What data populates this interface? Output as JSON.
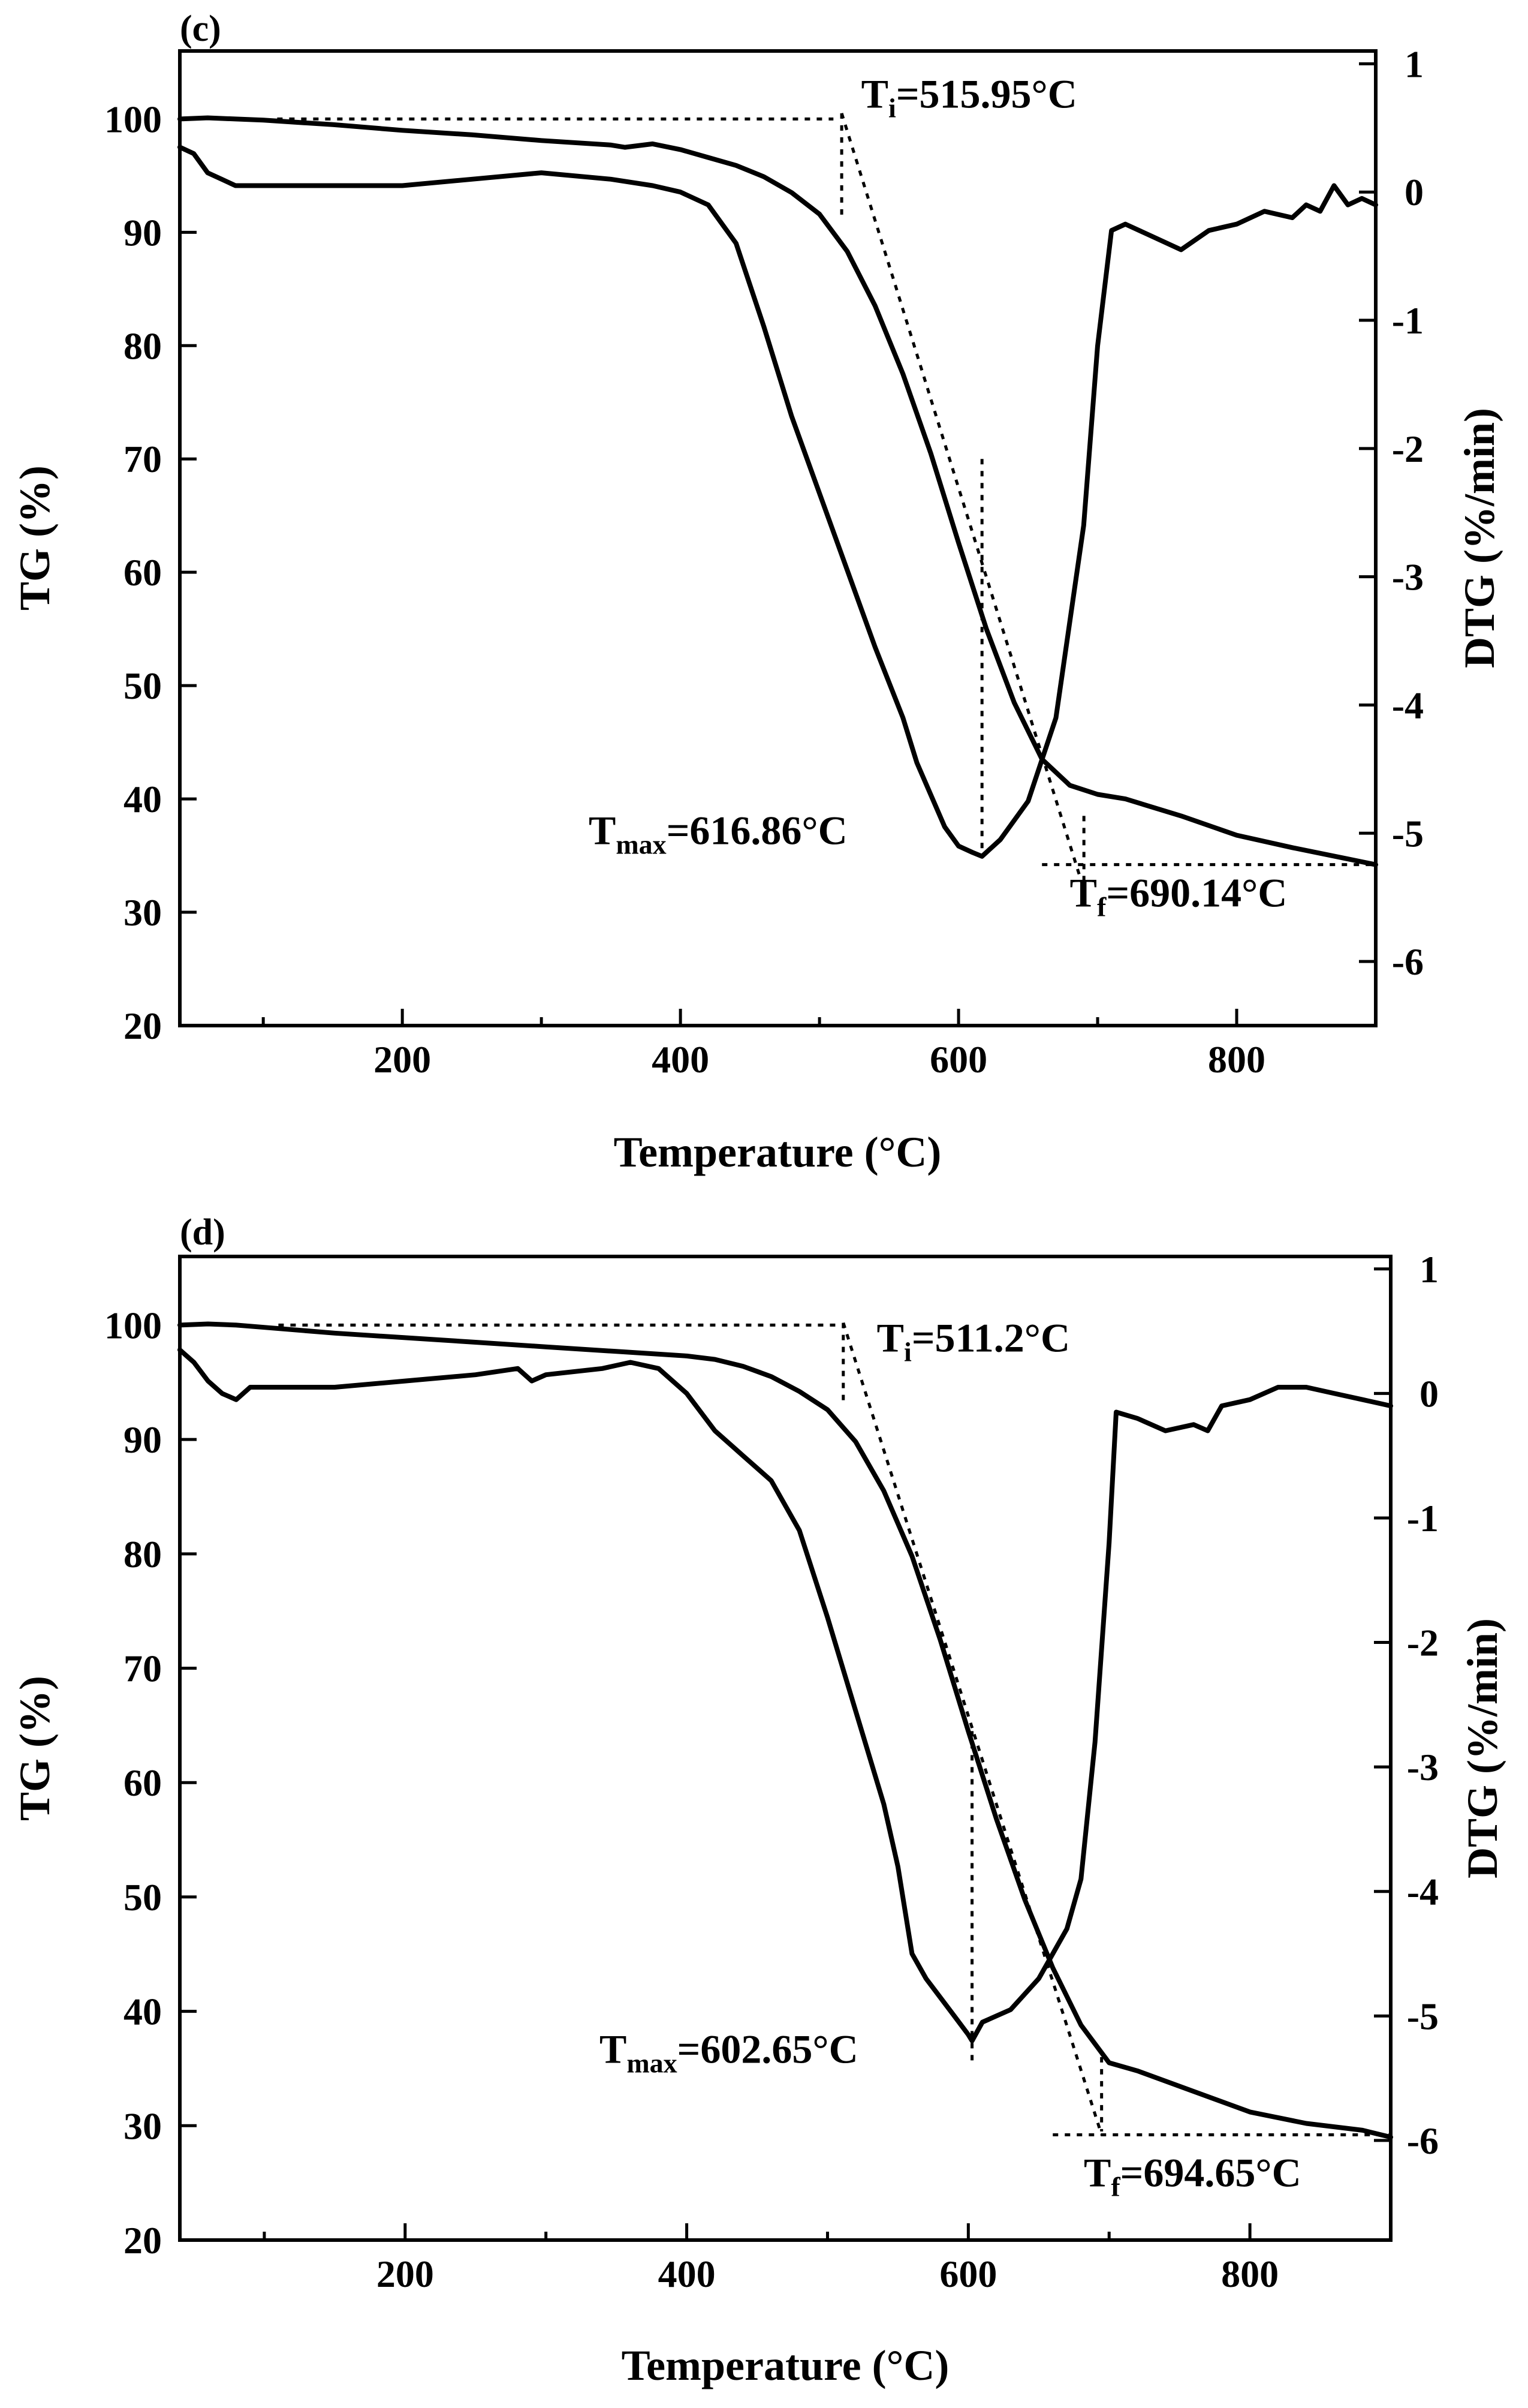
{
  "chart_data": [
    {
      "type": "line",
      "panel_label": "(c)",
      "xlabel": "Temperature (°C)",
      "ylabel_left": "TG (%)",
      "ylabel_right": "DTG (%/min)",
      "xlim": [
        40,
        900
      ],
      "ylim_left": [
        20,
        106
      ],
      "ylim_right": [
        -6.5,
        1.1
      ],
      "xticks": [
        200,
        400,
        600,
        800
      ],
      "xtick_labels": [
        "200",
        "400",
        "600",
        "800"
      ],
      "yticks_left": [
        20,
        30,
        40,
        50,
        60,
        70,
        80,
        90,
        100
      ],
      "ytick_labels_left": [
        "20",
        "30",
        "40",
        "50",
        "60",
        "70",
        "80",
        "90",
        "100"
      ],
      "yticks_right": [
        1,
        0,
        -1,
        -2,
        -3,
        -4,
        -5,
        -6
      ],
      "ytick_labels_right": [
        "1",
        "0",
        "-1",
        "-2",
        "-3",
        "-4",
        "-5",
        "-6"
      ],
      "series": [
        {
          "name": "TG",
          "axis": "left",
          "x": [
            40,
            60,
            80,
            100,
            150,
            200,
            250,
            300,
            350,
            360,
            380,
            400,
            420,
            440,
            460,
            480,
            500,
            520,
            540,
            560,
            580,
            600,
            620,
            640,
            660,
            680,
            700,
            720,
            760,
            800,
            840,
            880,
            900
          ],
          "y": [
            100,
            100.1,
            100,
            99.9,
            99.5,
            99,
            98.6,
            98.1,
            97.7,
            97.5,
            97.8,
            97.3,
            96.6,
            95.9,
            94.9,
            93.5,
            91.6,
            88.3,
            83.5,
            77.5,
            70.5,
            62.6,
            55,
            48.5,
            43.5,
            41.2,
            40.4,
            40,
            38.5,
            36.8,
            35.7,
            34.7,
            34.2
          ]
        },
        {
          "name": "DTG",
          "axis": "right",
          "x": [
            40,
            50,
            60,
            70,
            80,
            100,
            150,
            200,
            250,
            300,
            350,
            380,
            400,
            420,
            440,
            460,
            480,
            500,
            520,
            540,
            560,
            570,
            580,
            590,
            600,
            610,
            616.86,
            630,
            650,
            670,
            690,
            700,
            710,
            720,
            740,
            760,
            780,
            800,
            820,
            840,
            850,
            860,
            870,
            880,
            890,
            900
          ],
          "y": [
            0.35,
            0.3,
            0.15,
            0.1,
            0.05,
            0.05,
            0.05,
            0.05,
            0.1,
            0.15,
            0.1,
            0.05,
            0,
            -0.1,
            -0.4,
            -1.05,
            -1.75,
            -2.35,
            -2.95,
            -3.55,
            -4.1,
            -4.45,
            -4.7,
            -4.95,
            -5.1,
            -5.15,
            -5.18,
            -5.05,
            -4.75,
            -4.1,
            -2.6,
            -1.2,
            -0.3,
            -0.25,
            -0.35,
            -0.45,
            -0.3,
            -0.25,
            -0.15,
            -0.2,
            -0.1,
            -0.15,
            0.05,
            -0.1,
            -0.05,
            -0.1
          ]
        }
      ],
      "construction_lines": [
        {
          "axis": "left",
          "x": [
            110,
            510
          ],
          "y": [
            100,
            100
          ]
        },
        {
          "axis": "left",
          "x": [
            515.95,
            690.14
          ],
          "y": [
            100.5,
            32.0
          ]
        },
        {
          "axis": "left",
          "x": [
            515.95,
            515.95
          ],
          "y": [
            100.5,
            91.5
          ]
        },
        {
          "axis": "left",
          "x": [
            660,
            900
          ],
          "y": [
            34.2,
            34.2
          ]
        },
        {
          "axis": "left",
          "x": [
            690.14,
            690.14
          ],
          "y": [
            38.5,
            32.5
          ]
        },
        {
          "axis": "left",
          "x": [
            616.86,
            616.86
          ],
          "y": [
            70,
            35.5
          ]
        }
      ],
      "annotations": [
        {
          "label": "T",
          "sub": "i",
          "value": "=515.95°C",
          "anchor_x": 530,
          "anchor_y": 101,
          "axis": "left"
        },
        {
          "label": "T",
          "sub": "max",
          "value": "=616.86°C",
          "anchor_x": 334,
          "anchor_y": 36,
          "axis": "left"
        },
        {
          "label": "T",
          "sub": "f",
          "value": "=690.14°C",
          "anchor_x": 680,
          "anchor_y": 30.5,
          "axis": "left"
        }
      ]
    },
    {
      "type": "line",
      "panel_label": "(d)",
      "xlabel": "Temperature (°C)",
      "ylabel_left": "TG (%)",
      "ylabel_right": "DTG (%/min)",
      "xlim": [
        40,
        900
      ],
      "ylim_left": [
        20,
        106
      ],
      "ylim_right": [
        -6.8,
        1.1
      ],
      "xticks": [
        200,
        400,
        600,
        800
      ],
      "xtick_labels": [
        "200",
        "400",
        "600",
        "800"
      ],
      "yticks_left": [
        20,
        30,
        40,
        50,
        60,
        70,
        80,
        90,
        100
      ],
      "ytick_labels_left": [
        "20",
        "30",
        "40",
        "50",
        "60",
        "70",
        "80",
        "90",
        "100"
      ],
      "yticks_right": [
        1,
        0,
        -1,
        -2,
        -3,
        -4,
        -5,
        -6
      ],
      "ytick_labels_right": [
        "1",
        "0",
        "-1",
        "-2",
        "-3",
        "-4",
        "-5",
        "-6"
      ],
      "series": [
        {
          "name": "TG",
          "axis": "left",
          "x": [
            40,
            60,
            80,
            100,
            150,
            200,
            250,
            300,
            350,
            400,
            420,
            440,
            460,
            480,
            500,
            520,
            540,
            560,
            580,
            600,
            620,
            640,
            660,
            680,
            700,
            720,
            760,
            800,
            840,
            880,
            900
          ],
          "y": [
            100,
            100.1,
            100,
            99.8,
            99.3,
            98.9,
            98.5,
            98.1,
            97.7,
            97.3,
            97,
            96.4,
            95.5,
            94.2,
            92.6,
            89.8,
            85.5,
            79.8,
            72.5,
            64.5,
            56.8,
            49.8,
            43.8,
            38.8,
            35.5,
            34.8,
            33,
            31.2,
            30.2,
            29.6,
            29
          ]
        },
        {
          "name": "DTG",
          "axis": "right",
          "x": [
            40,
            50,
            60,
            70,
            80,
            90,
            100,
            150,
            200,
            250,
            280,
            290,
            300,
            340,
            360,
            380,
            400,
            420,
            440,
            460,
            480,
            500,
            520,
            540,
            550,
            560,
            570,
            580,
            590,
            600,
            602.65,
            610,
            630,
            650,
            670,
            680,
            690,
            700,
            705,
            720,
            740,
            760,
            770,
            780,
            800,
            820,
            840,
            860,
            880,
            900
          ],
          "y": [
            0.35,
            0.25,
            0.1,
            0,
            -0.05,
            0.05,
            0.05,
            0.05,
            0.1,
            0.15,
            0.2,
            0.1,
            0.15,
            0.2,
            0.25,
            0.2,
            0,
            -0.3,
            -0.5,
            -0.7,
            -1.1,
            -1.8,
            -2.55,
            -3.3,
            -3.8,
            -4.5,
            -4.7,
            -4.85,
            -5,
            -5.15,
            -5.2,
            -5.05,
            -4.95,
            -4.7,
            -4.3,
            -3.9,
            -2.8,
            -1.2,
            -0.15,
            -0.2,
            -0.3,
            -0.25,
            -0.3,
            -0.1,
            -0.05,
            0.05,
            0.05,
            0,
            -0.05,
            -0.1
          ]
        }
      ],
      "construction_lines": [
        {
          "axis": "left",
          "x": [
            110,
            510
          ],
          "y": [
            100,
            100
          ]
        },
        {
          "axis": "left",
          "x": [
            511.2,
            694.65
          ],
          "y": [
            100.2,
            29.2
          ]
        },
        {
          "axis": "left",
          "x": [
            511.2,
            511.2
          ],
          "y": [
            100.2,
            93
          ]
        },
        {
          "axis": "left",
          "x": [
            660,
            900
          ],
          "y": [
            29.2,
            29.2
          ]
        },
        {
          "axis": "left",
          "x": [
            694.65,
            694.65
          ],
          "y": [
            36,
            29.5
          ]
        },
        {
          "axis": "left",
          "x": [
            602.65,
            602.65
          ],
          "y": [
            64.5,
            35.5
          ]
        }
      ],
      "annotations": [
        {
          "label": "T",
          "sub": "i",
          "value": "=511.2°C",
          "anchor_x": 535,
          "anchor_y": 97.7,
          "axis": "left"
        },
        {
          "label": "T",
          "sub": "max",
          "value": "=602.65°C",
          "anchor_x": 338,
          "anchor_y": 35.5,
          "axis": "left"
        },
        {
          "label": "T",
          "sub": "f",
          "value": "=694.65°C",
          "anchor_x": 682,
          "anchor_y": 24.7,
          "axis": "left"
        }
      ]
    }
  ]
}
